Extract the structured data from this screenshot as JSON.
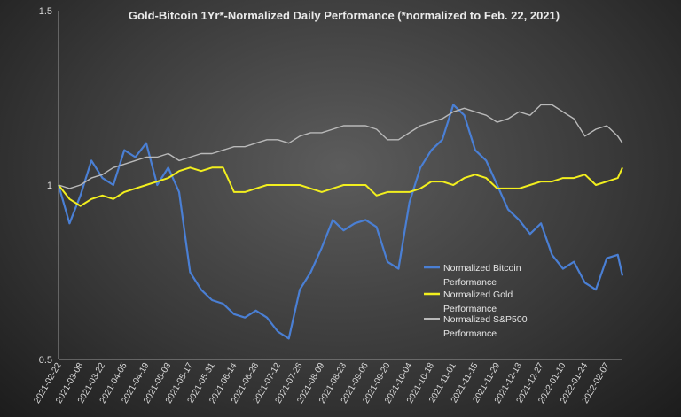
{
  "chart_data": {
    "type": "line",
    "title": "Gold-Bitcoin 1Yr*-Normalized Daily Performance (*normalized to Feb. 22, 2021)",
    "xlabel": "",
    "ylabel": "",
    "ylim": [
      0.5,
      1.5
    ],
    "yticks": [
      "0.5",
      "1",
      "1.5"
    ],
    "grid": false,
    "legend_position": "right",
    "x_tick_labels": [
      "2021-02-22",
      "2021-03-08",
      "2021-03-22",
      "2021-04-05",
      "2021-04-19",
      "2021-05-03",
      "2021-05-17",
      "2021-05-31",
      "2021-06-14",
      "2021-06-28",
      "2021-07-12",
      "2021-07-26",
      "2021-08-09",
      "2021-08-23",
      "2021-09-06",
      "2021-09-20",
      "2021-10-04",
      "2021-10-18",
      "2021-11-01",
      "2021-11-15",
      "2021-11-29",
      "2021-12-13",
      "2021-12-27",
      "2022-01-10",
      "2022-01-24",
      "2022-02-07"
    ],
    "x": [
      "2021-02-22",
      "2021-03-01",
      "2021-03-08",
      "2021-03-15",
      "2021-03-22",
      "2021-03-29",
      "2021-04-05",
      "2021-04-12",
      "2021-04-19",
      "2021-04-26",
      "2021-05-03",
      "2021-05-10",
      "2021-05-17",
      "2021-05-24",
      "2021-05-31",
      "2021-06-07",
      "2021-06-14",
      "2021-06-21",
      "2021-06-28",
      "2021-07-05",
      "2021-07-12",
      "2021-07-19",
      "2021-07-26",
      "2021-08-02",
      "2021-08-09",
      "2021-08-16",
      "2021-08-23",
      "2021-08-30",
      "2021-09-06",
      "2021-09-13",
      "2021-09-20",
      "2021-09-27",
      "2021-10-04",
      "2021-10-11",
      "2021-10-18",
      "2021-10-25",
      "2021-11-01",
      "2021-11-08",
      "2021-11-15",
      "2021-11-22",
      "2021-11-29",
      "2021-12-06",
      "2021-12-13",
      "2021-12-20",
      "2021-12-27",
      "2022-01-03",
      "2022-01-10",
      "2022-01-17",
      "2022-01-24",
      "2022-01-31",
      "2022-02-07",
      "2022-02-14",
      "2022-02-17"
    ],
    "series": [
      {
        "name": "Normalized Bitcoin Performance",
        "color": "#4a7fd4",
        "values": [
          1.0,
          0.89,
          0.97,
          1.07,
          1.02,
          1.0,
          1.1,
          1.08,
          1.12,
          1.0,
          1.05,
          0.98,
          0.75,
          0.7,
          0.67,
          0.66,
          0.63,
          0.62,
          0.64,
          0.62,
          0.58,
          0.56,
          0.7,
          0.75,
          0.82,
          0.9,
          0.87,
          0.89,
          0.9,
          0.88,
          0.78,
          0.76,
          0.95,
          1.05,
          1.1,
          1.13,
          1.23,
          1.2,
          1.1,
          1.07,
          1.0,
          0.93,
          0.9,
          0.86,
          0.89,
          0.8,
          0.76,
          0.78,
          0.72,
          0.7,
          0.79,
          0.8,
          0.74
        ]
      },
      {
        "name": "Normalized Gold Performance",
        "color": "#f2ef1e",
        "values": [
          1.0,
          0.96,
          0.94,
          0.96,
          0.97,
          0.96,
          0.98,
          0.99,
          1.0,
          1.01,
          1.02,
          1.04,
          1.05,
          1.04,
          1.05,
          1.05,
          0.98,
          0.98,
          0.99,
          1.0,
          1.0,
          1.0,
          1.0,
          0.99,
          0.98,
          0.99,
          1.0,
          1.0,
          1.0,
          0.97,
          0.98,
          0.98,
          0.98,
          0.99,
          1.01,
          1.01,
          1.0,
          1.02,
          1.03,
          1.02,
          0.99,
          0.99,
          0.99,
          1.0,
          1.01,
          1.01,
          1.02,
          1.02,
          1.03,
          1.0,
          1.01,
          1.02,
          1.05
        ]
      },
      {
        "name": "Normalized S&P500 Performance",
        "color": "#b9b9b9",
        "values": [
          1.0,
          0.99,
          1.0,
          1.02,
          1.03,
          1.05,
          1.06,
          1.07,
          1.08,
          1.08,
          1.09,
          1.07,
          1.08,
          1.09,
          1.09,
          1.1,
          1.11,
          1.11,
          1.12,
          1.13,
          1.13,
          1.12,
          1.14,
          1.15,
          1.15,
          1.16,
          1.17,
          1.17,
          1.17,
          1.16,
          1.13,
          1.13,
          1.15,
          1.17,
          1.18,
          1.19,
          1.21,
          1.22,
          1.21,
          1.2,
          1.18,
          1.19,
          1.21,
          1.2,
          1.23,
          1.23,
          1.21,
          1.19,
          1.14,
          1.16,
          1.17,
          1.14,
          1.12
        ]
      }
    ]
  },
  "legend": {
    "items": [
      {
        "line1": "Normalized Bitcoin",
        "line2": "Performance",
        "color": "#4a7fd4"
      },
      {
        "line1": "Normalized Gold",
        "line2": "Performance",
        "color": "#f2ef1e"
      },
      {
        "line1": "Normalized S&P500",
        "line2": "Performance",
        "color": "#b9b9b9"
      }
    ]
  }
}
